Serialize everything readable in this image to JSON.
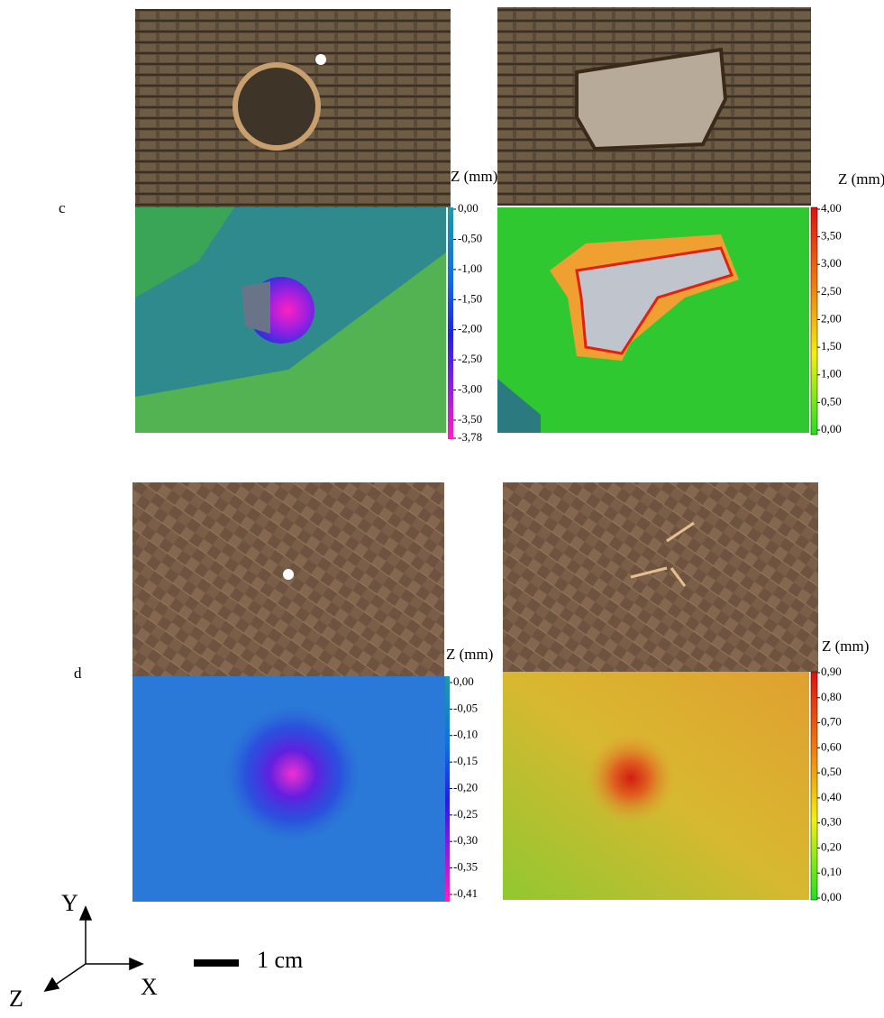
{
  "rows": [
    {
      "label": "c",
      "panels": [
        {
          "z_label": "Z (mm)",
          "ticks": [
            "0,00",
            "-0,50",
            "-1,00",
            "-1,50",
            "-2,00",
            "-2,50",
            "-3,00",
            "-3,50",
            "-3,78"
          ]
        },
        {
          "z_label": "Z (mm)",
          "ticks": [
            "4,00",
            "3,50",
            "3,00",
            "2,50",
            "2,00",
            "1,50",
            "1,00",
            "0,50",
            "0,00"
          ]
        }
      ]
    },
    {
      "label": "d",
      "panels": [
        {
          "z_label": "Z (mm)",
          "ticks": [
            "0,00",
            "-0,05",
            "-0,10",
            "-0,15",
            "-0,20",
            "-0,25",
            "-0,30",
            "-0,35",
            "-0,41"
          ]
        },
        {
          "z_label": "Z (mm)",
          "ticks": [
            "0,90",
            "0,80",
            "0,70",
            "0,60",
            "0,50",
            "0,40",
            "0,30",
            "0,20",
            "0,10",
            "0,00"
          ]
        }
      ]
    }
  ],
  "axes": {
    "x": "X",
    "y": "Y",
    "z": "Z"
  },
  "scale_bar": "1 cm"
}
